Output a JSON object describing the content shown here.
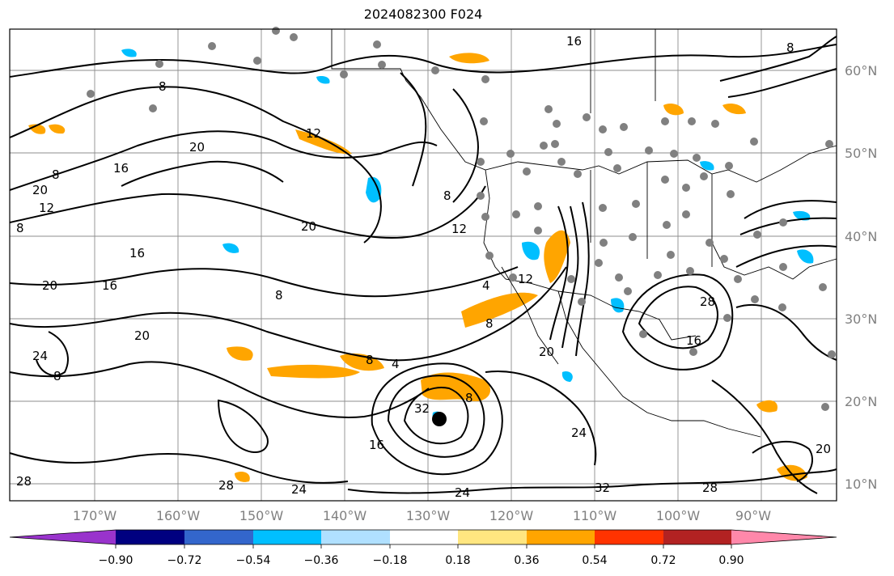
{
  "title": "2024082300 F024",
  "longitude_labels": [
    "170°W",
    "160°W",
    "150°W",
    "140°W",
    "130°W",
    "120°W",
    "110°W",
    "100°W",
    "90°W"
  ],
  "latitude_labels": [
    "60°N",
    "50°N",
    "40°N",
    "30°N",
    "20°N",
    "10°N"
  ],
  "colorbar": {
    "ticks": [
      "−0.90",
      "−0.72",
      "−0.54",
      "−0.36",
      "−0.18",
      "0.18",
      "0.36",
      "0.54",
      "0.72",
      "0.90"
    ],
    "colors": [
      "#9933cc",
      "#000080",
      "#3366cc",
      "#00bfff",
      "#b0e0ff",
      "#ffffff",
      "#ffe680",
      "#ffa500",
      "#ff3300",
      "#b22222",
      "#ff88aa"
    ]
  },
  "contour_labels": [
    "16",
    "8",
    "20",
    "16",
    "8",
    "12",
    "20",
    "12",
    "8",
    "16",
    "8",
    "20",
    "12",
    "8",
    "4",
    "8",
    "16",
    "20",
    "24",
    "8",
    "4",
    "8",
    "20",
    "32",
    "16",
    "24",
    "28",
    "8",
    "28",
    "24",
    "28",
    "32",
    "28",
    "20",
    "16",
    "12",
    "8",
    "20",
    "24"
  ],
  "markers": {
    "storm_center": "black-dot",
    "stations": "gray-dots"
  }
}
